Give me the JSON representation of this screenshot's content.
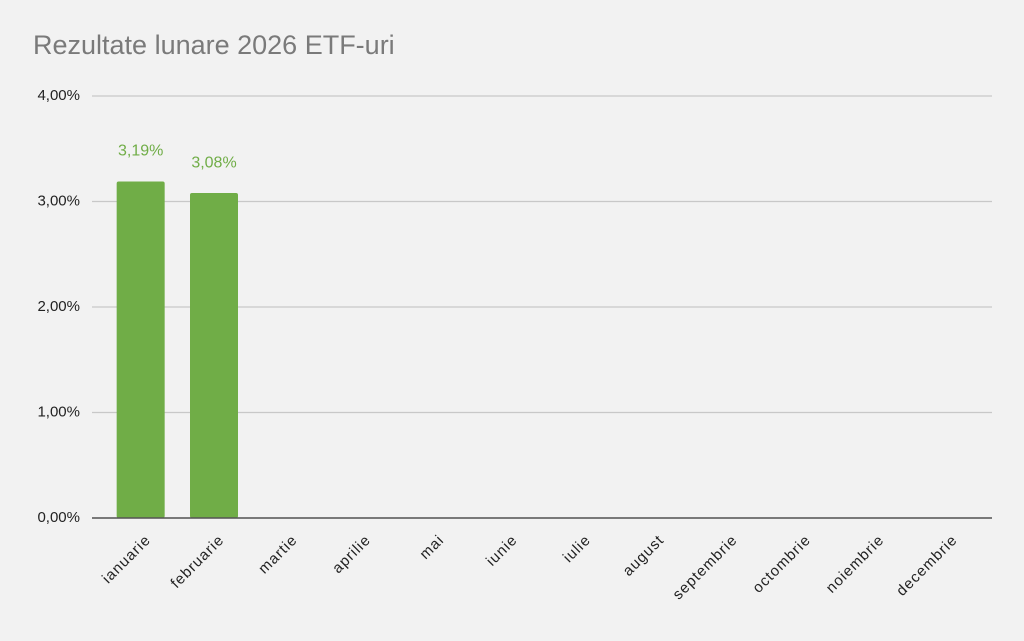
{
  "chart_data": {
    "type": "bar",
    "title": "Rezultate lunare 2026 ETF-uri",
    "categories": [
      "ianuarie",
      "februarie",
      "martie",
      "aprilie",
      "mai",
      "iunie",
      "iulie",
      "august",
      "septembrie",
      "octombrie",
      "noiembrie",
      "decembrie"
    ],
    "values": [
      3.19,
      3.08,
      null,
      null,
      null,
      null,
      null,
      null,
      null,
      null,
      null,
      null
    ],
    "value_labels": [
      "3,19%",
      "3,08%",
      null,
      null,
      null,
      null,
      null,
      null,
      null,
      null,
      null,
      null
    ],
    "color": "#70ad47",
    "ylim": [
      0,
      4
    ],
    "yticks": [
      {
        "value": 0,
        "label": "0,00%"
      },
      {
        "value": 1,
        "label": "1,00%"
      },
      {
        "value": 2,
        "label": "2,00%"
      },
      {
        "value": 3,
        "label": "3,00%"
      },
      {
        "value": 4,
        "label": "4,00%"
      }
    ],
    "grid": true
  }
}
